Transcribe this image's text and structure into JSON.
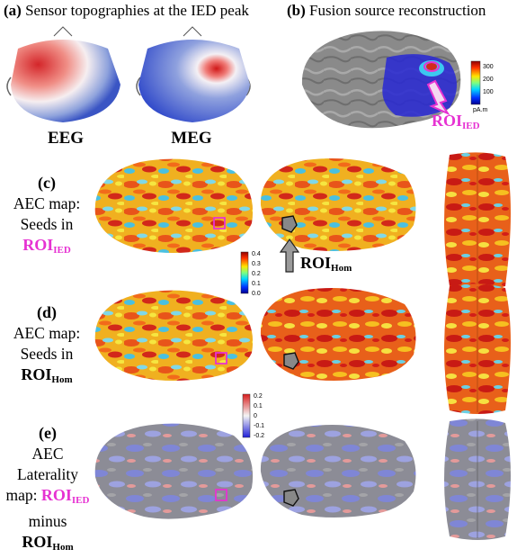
{
  "panel_a": {
    "letter": "(a)",
    "title": "Sensor topographies at the IED peak",
    "eeg_label": "EEG",
    "meg_label": "MEG"
  },
  "panel_b": {
    "letter": "(b)",
    "title": "Fusion source reconstruction",
    "colorbar_ticks": [
      "300",
      "200",
      "100"
    ],
    "colorbar_unit": "pA.m",
    "roi_label": "ROI",
    "roi_sub": "IED"
  },
  "panel_c": {
    "letter": "(c)",
    "line1": "AEC map:",
    "line2": "Seeds in",
    "roi_label": "ROI",
    "roi_sub": "IED",
    "colorbar_ticks": [
      "0.4",
      "0.3",
      "0.2",
      "0.1",
      "0.0"
    ],
    "roi_hom_label": "ROI",
    "roi_hom_sub": "Hom"
  },
  "panel_d": {
    "letter": "(d)",
    "line1": "AEC map:",
    "line2": "Seeds in",
    "roi_label": "ROI",
    "roi_sub": "Hom"
  },
  "panel_e": {
    "letter": "(e)",
    "line1": "AEC Laterality",
    "line2_pre": "map: ",
    "roi_ied_label": "ROI",
    "roi_ied_sub": "IED",
    "line3": "minus",
    "roi_hom_label": "ROI",
    "roi_hom_sub": "Hom",
    "colorbar_ticks": [
      "0.2",
      "0.1",
      "0",
      "-0.1",
      "-0.2"
    ]
  },
  "colors": {
    "roi_ied_magenta": "#e632d2",
    "hot_red": "#d42a1c",
    "brain_gray": "#8a8a8a",
    "lateral_blue": "#8c8fd8"
  }
}
